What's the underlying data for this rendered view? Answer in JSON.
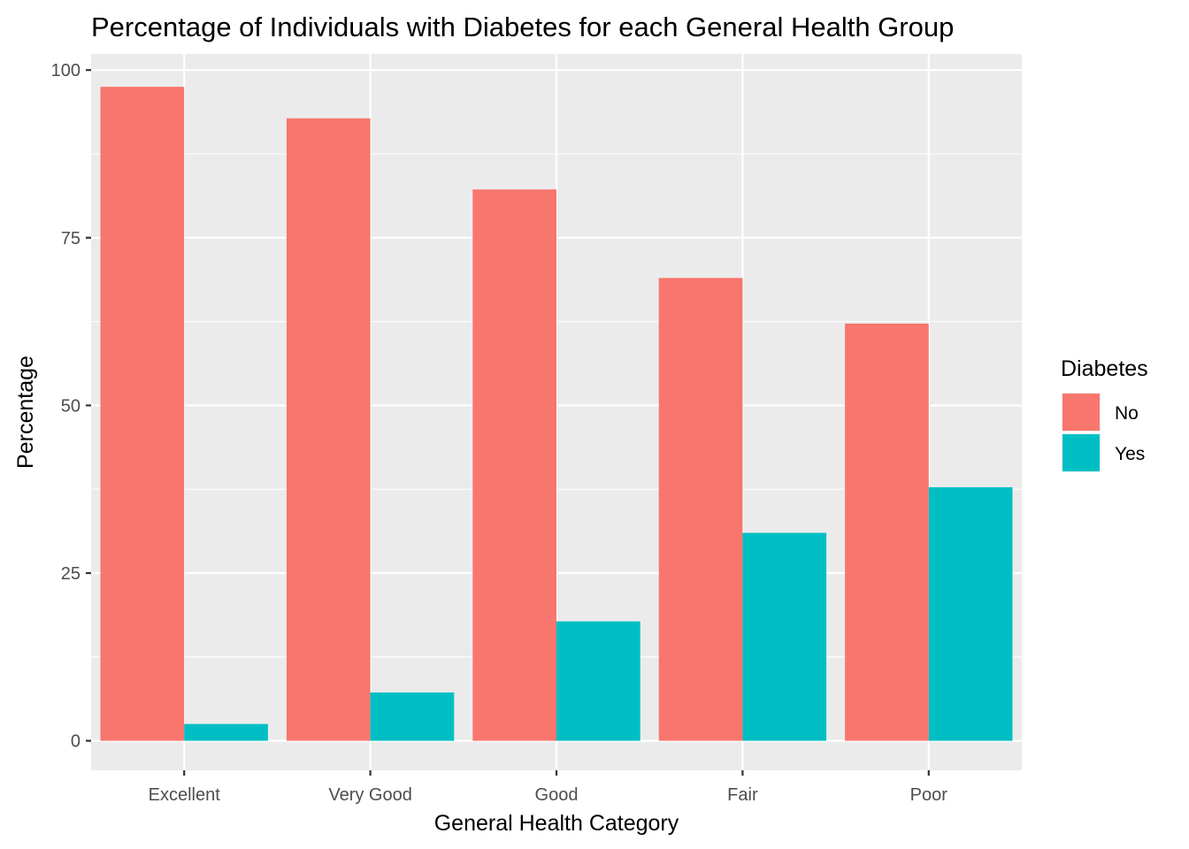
{
  "chart_data": {
    "type": "bar",
    "title": "Percentage of Individuals with Diabetes for each General Health Group",
    "xlabel": "General Health Category",
    "ylabel": "Percentage",
    "categories": [
      "Excellent",
      "Very Good",
      "Good",
      "Fair",
      "Poor"
    ],
    "series": [
      {
        "name": "No",
        "values": [
          97.5,
          92.8,
          82.2,
          69.0,
          62.2
        ]
      },
      {
        "name": "Yes",
        "values": [
          2.5,
          7.2,
          17.8,
          31.0,
          37.8
        ]
      }
    ],
    "ylim": [
      -4.4,
      102.4
    ],
    "yticks": [
      0,
      25,
      50,
      75,
      100
    ],
    "grid": true,
    "legend_title": "Diabetes",
    "legend_position": "right"
  },
  "colors": {
    "panel_background": "#EBEBEB",
    "grid": "#FFFFFF",
    "series": [
      "#F8766D",
      "#00BFC4"
    ]
  }
}
